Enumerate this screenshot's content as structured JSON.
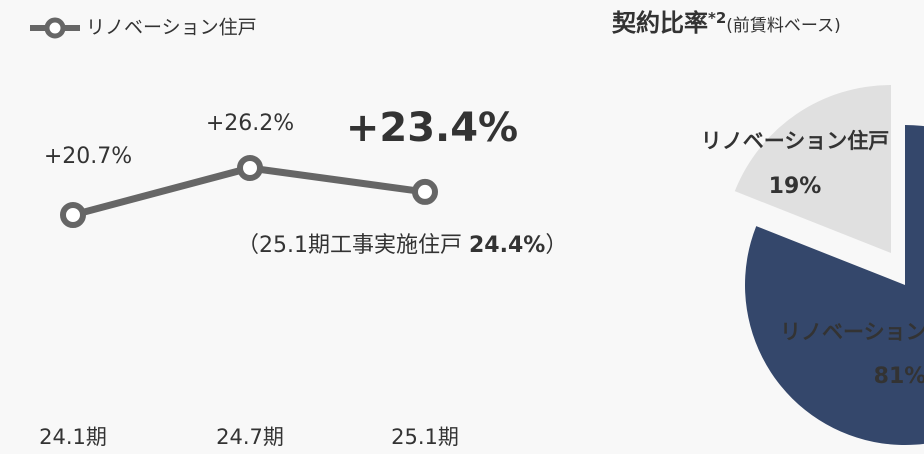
{
  "chart_data": [
    {
      "type": "line",
      "categories": [
        "24.1期",
        "24.7期",
        "25.1期"
      ],
      "series": [
        {
          "name": "リノベーション住戸",
          "color": "#666666",
          "values": [
            20.7,
            26.2,
            23.4
          ],
          "value_labels": [
            "+20.7%",
            "+26.2%",
            "+23.4%"
          ]
        }
      ],
      "highlight_color": "#c0143c",
      "annotation": {
        "before": "（25.1期工事実施住戸 ",
        "bold": "24.4%",
        "after": "）"
      }
    },
    {
      "type": "pie",
      "title": "契約比率",
      "title_note": "*2",
      "subtitle": "(前賃料ベース)",
      "categories": [
        "リノベーション住戸",
        "リノベーション"
      ],
      "values": [
        19,
        81
      ],
      "value_labels": [
        "19%",
        "81%"
      ],
      "colors": [
        "#e0e0e0",
        "#34476b"
      ]
    }
  ]
}
